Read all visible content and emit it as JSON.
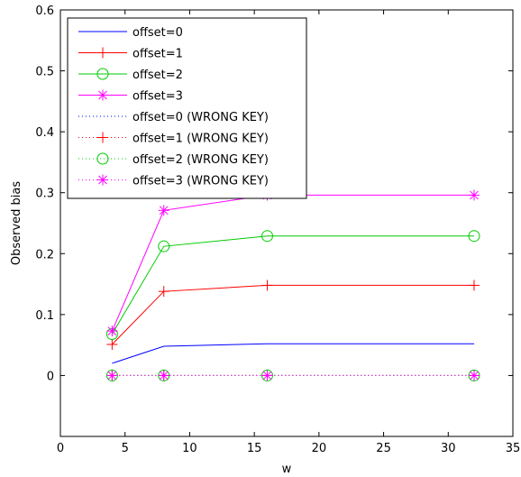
{
  "chart_data": {
    "type": "line",
    "xlabel": "w",
    "ylabel": "Observed bias",
    "xlim": [
      0,
      35
    ],
    "ylim": [
      0,
      0.6
    ],
    "extra_bottom": 0.1,
    "xticks": [
      0,
      5,
      10,
      15,
      20,
      25,
      30,
      35
    ],
    "yticks": [
      0,
      0.1,
      0.2,
      0.3,
      0.4,
      0.5,
      0.6
    ],
    "xtick_labels": [
      "0",
      "5",
      "10",
      "15",
      "20",
      "25",
      "30",
      "35"
    ],
    "ytick_labels": [
      "0",
      "0.1",
      "0.2",
      "0.3",
      "0.4",
      "0.5",
      "0.6"
    ],
    "grid": false,
    "legend_position": "top-left",
    "x": [
      4,
      8,
      16,
      32
    ],
    "series": [
      {
        "name": "offset=0",
        "values": [
          0.02,
          0.048,
          0.052,
          0.052
        ],
        "color": "#0000ff",
        "line": "solid",
        "marker": "none"
      },
      {
        "name": "offset=1",
        "values": [
          0.051,
          0.138,
          0.148,
          0.148
        ],
        "color": "#ff0000",
        "line": "solid",
        "marker": "plus"
      },
      {
        "name": "offset=2",
        "values": [
          0.068,
          0.212,
          0.229,
          0.229
        ],
        "color": "#00cc00",
        "line": "solid",
        "marker": "circle"
      },
      {
        "name": "offset=3",
        "values": [
          0.073,
          0.271,
          0.296,
          0.296
        ],
        "color": "#ff00ff",
        "line": "solid",
        "marker": "star"
      },
      {
        "name": "offset=0 (WRONG KEY)",
        "values": [
          0,
          0,
          0,
          0
        ],
        "color": "#0000ff",
        "line": "dotted",
        "marker": "none"
      },
      {
        "name": "offset=1 (WRONG KEY)",
        "values": [
          0,
          0,
          0,
          0
        ],
        "color": "#ff0000",
        "line": "dotted",
        "marker": "plus"
      },
      {
        "name": "offset=2 (WRONG KEY)",
        "values": [
          0,
          0,
          0,
          0
        ],
        "color": "#00cc00",
        "line": "dotted",
        "marker": "circle"
      },
      {
        "name": "offset=3 (WRONG KEY)",
        "values": [
          0,
          0,
          0,
          0
        ],
        "color": "#ff00ff",
        "line": "dotted",
        "marker": "star"
      }
    ]
  }
}
